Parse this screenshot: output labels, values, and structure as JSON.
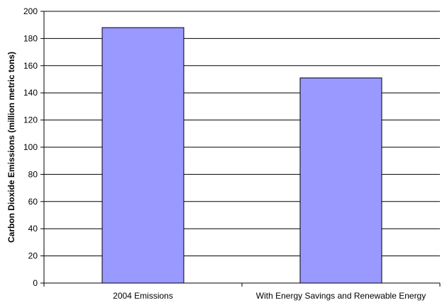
{
  "chart_data": {
    "type": "bar",
    "title": "",
    "xlabel": "",
    "ylabel": "Carbon Dioxide Emissions (million metric tons)",
    "categories": [
      "2004 Emissions",
      "With Energy Savings and Renewable Energy"
    ],
    "values": [
      188,
      151
    ],
    "ylim": [
      0,
      200
    ],
    "yticks": [
      "0",
      "20",
      "40",
      "60",
      "80",
      "100",
      "120",
      "140",
      "160",
      "180",
      "200"
    ],
    "grid": true,
    "bar_color": "#9999ff",
    "bar_edge_color": "#000000",
    "legend": null
  }
}
